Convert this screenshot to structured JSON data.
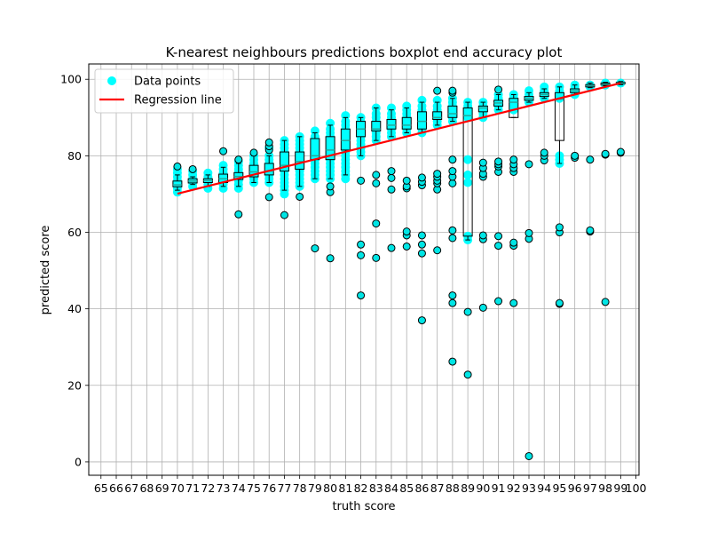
{
  "chart_data": {
    "type": "boxplot",
    "title": "K-nearest neighbours predictions boxplot end accuracy plot",
    "xlabel": "truth score",
    "ylabel": "predicted score",
    "xlim": [
      64.2,
      100.2
    ],
    "ylim": [
      -3.5,
      104
    ],
    "x_ticks": [
      65,
      66,
      67,
      68,
      69,
      70,
      71,
      72,
      73,
      74,
      75,
      76,
      77,
      78,
      79,
      80,
      81,
      82,
      83,
      84,
      85,
      86,
      87,
      88,
      89,
      90,
      91,
      92,
      93,
      94,
      95,
      96,
      97,
      98,
      99,
      100
    ],
    "y_ticks": [
      0,
      20,
      40,
      60,
      80,
      100
    ],
    "grid": true,
    "colors": {
      "points": "#00ffff",
      "regression": "#ff0000",
      "box_fill": "#26a69a",
      "box_edge": "#000000",
      "flier_fill": "#00e5e5",
      "grid": "#b0b0b0"
    },
    "legend": {
      "position": "top-left",
      "entries": [
        {
          "label": "Data points",
          "type": "scatter"
        },
        {
          "label": "Regression line",
          "type": "line"
        }
      ]
    },
    "regression": {
      "x": [
        70,
        99
      ],
      "y": [
        70.1,
        99.0
      ]
    },
    "boxes": [
      {
        "x": 70,
        "q1": 71.9,
        "median": 72.4,
        "q3": 73.4,
        "low": 71.0,
        "high": 75.0,
        "fliers": [
          77.2
        ],
        "points": [
          70.5,
          71.5,
          72.5,
          73.5,
          74.5,
          75.5,
          76.5
        ]
      },
      {
        "x": 71,
        "q1": 72.9,
        "median": 73.4,
        "q3": 74.0,
        "low": 72.5,
        "high": 74.5,
        "fliers": [
          76.5
        ],
        "points": [
          72.0,
          73.0,
          74.0,
          75.0,
          76.0
        ]
      },
      {
        "x": 72,
        "q1": 73.0,
        "median": 73.5,
        "q3": 74.0,
        "low": 72.0,
        "high": 75.0,
        "fliers": [],
        "points": [
          71.5,
          72.5,
          73.5,
          74.5,
          75.5
        ]
      },
      {
        "x": 73,
        "q1": 73.0,
        "median": 74.0,
        "q3": 75.2,
        "low": 72.0,
        "high": 77.0,
        "fliers": [
          81.2
        ],
        "points": [
          71.5,
          72.5,
          73.5,
          74.5,
          75.5,
          76.5,
          77.5
        ]
      },
      {
        "x": 74,
        "q1": 73.8,
        "median": 74.6,
        "q3": 75.6,
        "low": 72.0,
        "high": 78.0,
        "fliers": [
          64.7,
          79.0
        ],
        "points": [
          71.5,
          72.5,
          73.5,
          74.5,
          75.5,
          76.5,
          77.5,
          78.5
        ]
      },
      {
        "x": 75,
        "q1": 74.5,
        "median": 75.8,
        "q3": 77.5,
        "low": 73.0,
        "high": 80.0,
        "fliers": [
          80.8
        ],
        "points": [
          73.0,
          74.0,
          75.0,
          76.0,
          77.0,
          78.0,
          79.0,
          80.0
        ]
      },
      {
        "x": 76,
        "q1": 75.0,
        "median": 76.0,
        "q3": 78.0,
        "low": 73.0,
        "high": 80.0,
        "fliers": [
          69.2,
          81.5,
          82.5,
          83.5
        ],
        "points": [
          73.0,
          74.0,
          75.0,
          76.0,
          77.0,
          78.0,
          79.0,
          80.0,
          82.0
        ]
      },
      {
        "x": 77,
        "q1": 76.0,
        "median": 77.5,
        "q3": 81.0,
        "low": 71.0,
        "high": 84.0,
        "fliers": [
          64.5
        ],
        "points": [
          70.0,
          71.0,
          72.0,
          73.0,
          74.0,
          75.0,
          76.0,
          77.0,
          78.0,
          79.0,
          80.0,
          81.0,
          82.0,
          83.0,
          84.0
        ]
      },
      {
        "x": 78,
        "q1": 76.5,
        "median": 78.5,
        "q3": 81.0,
        "low": 72.0,
        "high": 85.0,
        "fliers": [
          69.3
        ],
        "points": [
          72.0,
          73.0,
          74.0,
          75.0,
          76.0,
          77.0,
          78.0,
          79.0,
          80.0,
          81.0,
          82.0,
          83.0,
          84.0,
          85.0
        ]
      },
      {
        "x": 79,
        "q1": 79.0,
        "median": 80.0,
        "q3": 84.5,
        "low": 74.0,
        "high": 86.0,
        "fliers": [
          55.8
        ],
        "points": [
          74.0,
          75.0,
          76.0,
          77.0,
          78.0,
          79.0,
          80.0,
          81.0,
          82.0,
          83.0,
          84.0,
          85.0,
          86.5
        ]
      },
      {
        "x": 80,
        "q1": 79.0,
        "median": 81.5,
        "q3": 85.0,
        "low": 74.0,
        "high": 88.0,
        "fliers": [
          53.2,
          70.5,
          72.0
        ],
        "points": [
          74.0,
          75.0,
          76.0,
          77.0,
          78.0,
          79.0,
          80.0,
          81.0,
          82.0,
          83.0,
          84.0,
          85.0,
          86.0,
          87.0,
          88.5
        ]
      },
      {
        "x": 81,
        "q1": 81.5,
        "median": 84.0,
        "q3": 87.0,
        "low": 75.0,
        "high": 90.0,
        "fliers": [],
        "points": [
          74.0,
          75.0,
          76.0,
          77.0,
          78.0,
          79.0,
          80.0,
          81.0,
          82.0,
          83.0,
          84.0,
          85.0,
          86.0,
          87.0,
          88.0,
          89.0,
          90.5
        ]
      },
      {
        "x": 82,
        "q1": 85.0,
        "median": 87.0,
        "q3": 89.0,
        "low": 80.0,
        "high": 90.0,
        "fliers": [
          43.5,
          54.0,
          56.8,
          73.5
        ],
        "points": [
          80.0,
          81.0,
          82.0,
          83.0,
          84.0,
          85.0,
          86.0,
          87.0,
          88.0,
          89.0,
          90.0
        ]
      },
      {
        "x": 83,
        "q1": 86.5,
        "median": 87.0,
        "q3": 89.0,
        "low": 84.0,
        "high": 92.5,
        "fliers": [
          53.3,
          62.3,
          72.8,
          75.0
        ],
        "points": [
          84.0,
          85.0,
          86.0,
          87.0,
          88.0,
          89.0,
          90.0,
          91.0,
          92.5
        ]
      },
      {
        "x": 84,
        "q1": 87.0,
        "median": 88.0,
        "q3": 89.5,
        "low": 85.0,
        "high": 92.0,
        "fliers": [
          55.9,
          71.2,
          74.2,
          76.0
        ],
        "points": [
          85.0,
          86.0,
          87.0,
          88.0,
          89.0,
          90.0,
          91.0,
          92.5
        ]
      },
      {
        "x": 85,
        "q1": 87.0,
        "median": 88.0,
        "q3": 90.0,
        "low": 86.0,
        "high": 92.5,
        "fliers": [
          56.3,
          59.2,
          60.2,
          71.5,
          72.0,
          73.5
        ],
        "points": [
          86.0,
          87.0,
          88.0,
          89.0,
          90.0,
          91.0,
          92.0,
          93.0
        ]
      },
      {
        "x": 86,
        "q1": 87.0,
        "median": 89.0,
        "q3": 91.5,
        "low": 86.0,
        "high": 94.0,
        "fliers": [
          37.0,
          54.5,
          56.8,
          59.2,
          72.3,
          73.2,
          74.3
        ],
        "points": [
          86.0,
          87.0,
          88.0,
          89.0,
          90.0,
          91.0,
          92.0,
          93.0,
          94.5
        ]
      },
      {
        "x": 87,
        "q1": 89.5,
        "median": 90.0,
        "q3": 91.5,
        "low": 88.0,
        "high": 94.0,
        "fliers": [
          55.3,
          71.2,
          72.8,
          73.5,
          74.5,
          75.3,
          97.0
        ],
        "points": [
          88.0,
          89.0,
          90.0,
          91.0,
          92.0,
          93.0,
          94.5
        ]
      },
      {
        "x": 88,
        "q1": 90.0,
        "median": 91.0,
        "q3": 93.0,
        "low": 89.0,
        "high": 95.0,
        "fliers": [
          26.2,
          41.5,
          43.5,
          58.5,
          60.5,
          72.8,
          74.5,
          76.0,
          79.0,
          96.5,
          97.0
        ],
        "points": [
          89.0,
          90.0,
          91.0,
          92.0,
          93.0,
          94.0,
          95.0
        ]
      },
      {
        "x": 89,
        "q1": 59.0,
        "median": 90.5,
        "q3": 92.5,
        "low": 58.0,
        "high": 94.0,
        "fliers": [
          22.8,
          39.2
        ],
        "points": [
          58.0,
          59.0,
          73.0,
          75.0,
          79.0,
          90.0,
          91.0,
          92.0,
          93.0,
          94.0
        ]
      },
      {
        "x": 90,
        "q1": 91.5,
        "median": 92.5,
        "q3": 93.0,
        "low": 90.0,
        "high": 94.0,
        "fliers": [
          40.3,
          58.2,
          59.2,
          74.5,
          75.3,
          76.8,
          78.2
        ],
        "points": [
          90.0,
          91.0,
          92.0,
          93.0,
          94.0
        ]
      },
      {
        "x": 91,
        "q1": 93.0,
        "median": 93.8,
        "q3": 94.5,
        "low": 92.0,
        "high": 96.0,
        "fliers": [
          42.0,
          56.5,
          59.0,
          75.8,
          77.2,
          77.8,
          78.5,
          97.3
        ],
        "points": [
          92.0,
          93.0,
          94.0,
          95.0,
          96.0
        ]
      },
      {
        "x": 92,
        "q1": 90.0,
        "median": 94.0,
        "q3": 95.0,
        "low": 90.0,
        "high": 96.0,
        "fliers": [
          41.5,
          56.5,
          57.3,
          75.8,
          76.8,
          77.8,
          79.0
        ],
        "points": [
          92.0,
          93.0,
          94.0,
          95.0,
          96.0
        ]
      },
      {
        "x": 93,
        "q1": 94.5,
        "median": 95.0,
        "q3": 95.5,
        "low": 94.0,
        "high": 96.5,
        "fliers": [
          1.5,
          58.3,
          59.8,
          77.8
        ],
        "points": [
          94.0,
          95.0,
          96.0,
          97.0
        ]
      },
      {
        "x": 94,
        "q1": 95.5,
        "median": 96.0,
        "q3": 96.5,
        "low": 95.0,
        "high": 97.5,
        "fliers": [
          78.8,
          80.0,
          80.8
        ],
        "points": [
          95.0,
          96.0,
          97.0,
          98.0
        ]
      },
      {
        "x": 95,
        "q1": 84.0,
        "median": 94.8,
        "q3": 96.5,
        "low": 78.0,
        "high": 98.0,
        "fliers": [
          41.3,
          41.5,
          60.0,
          61.3
        ],
        "points": [
          78.0,
          79.0,
          80.0,
          95.0,
          96.0,
          97.0,
          98.0
        ]
      },
      {
        "x": 96,
        "q1": 96.5,
        "median": 97.0,
        "q3": 97.5,
        "low": 96.0,
        "high": 98.5,
        "fliers": [
          79.5,
          80.0
        ],
        "points": [
          96.0,
          97.0,
          98.0,
          98.5
        ]
      },
      {
        "x": 97,
        "q1": 98.0,
        "median": 98.3,
        "q3": 98.6,
        "low": 97.8,
        "high": 99.0,
        "fliers": [
          60.2,
          60.5,
          79.0
        ],
        "points": [
          98.0,
          98.5
        ]
      },
      {
        "x": 98,
        "q1": 98.5,
        "median": 98.7,
        "q3": 99.0,
        "low": 98.3,
        "high": 99.2,
        "fliers": [
          41.8,
          80.3,
          80.5
        ],
        "points": [
          98.5,
          99.0
        ]
      },
      {
        "x": 99,
        "q1": 98.8,
        "median": 99.0,
        "q3": 99.2,
        "low": 98.6,
        "high": 99.4,
        "fliers": [
          80.8,
          81.0
        ],
        "points": [
          99.0
        ]
      }
    ]
  }
}
